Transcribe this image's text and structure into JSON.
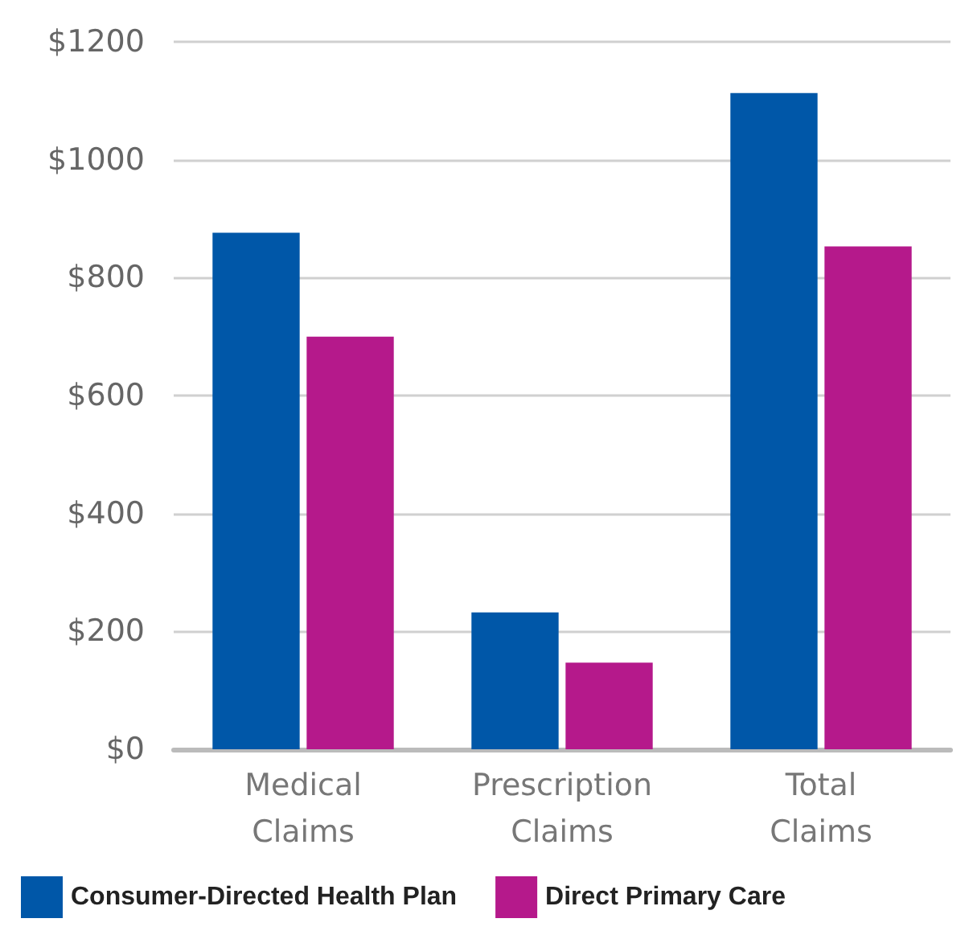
{
  "chart_data": {
    "type": "bar",
    "categories": [
      "Medical Claims",
      "Prescription Claims",
      "Total Claims"
    ],
    "series": [
      {
        "name": "Consumer-Directed Health Plan",
        "color": "#0057a8",
        "values": [
          876,
          232,
          1113
        ]
      },
      {
        "name": "Direct Primary Care",
        "color": "#b5198b",
        "values": [
          700,
          147,
          853
        ]
      }
    ],
    "ylim": [
      0,
      1200
    ],
    "yticks": [
      {
        "value": 0,
        "label": "$0"
      },
      {
        "value": 200,
        "label": "$200"
      },
      {
        "value": 400,
        "label": "$400"
      },
      {
        "value": 600,
        "label": "$600"
      },
      {
        "value": 800,
        "label": "$800"
      },
      {
        "value": 1000,
        "label": "$1000"
      },
      {
        "value": 1200,
        "label": "$1200"
      }
    ],
    "grid": "y",
    "legend": "bottom"
  }
}
